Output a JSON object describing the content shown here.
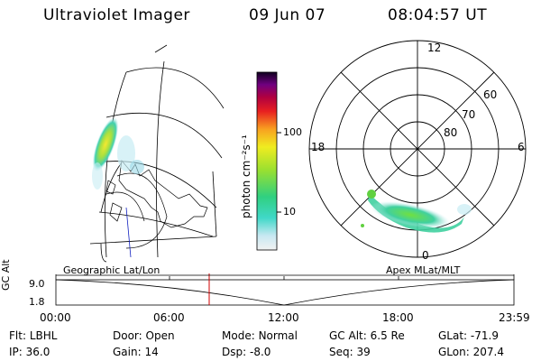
{
  "header": {
    "title": "Ultraviolet Imager",
    "date": "09 Jun 07",
    "time": "08:04:57 UT"
  },
  "colorbar": {
    "unit_label": "photon cm⁻²s⁻¹",
    "tick_labels": [
      "100",
      "10"
    ]
  },
  "polar": {
    "mlt_labels": [
      "12",
      "18",
      "6",
      "0"
    ],
    "lat_labels": [
      "60",
      "70",
      "80"
    ]
  },
  "strip": {
    "axis_label": "GC Alt",
    "left_title": "Geographic Lat/Lon",
    "right_title": "Apex MLat/MLT",
    "y_ticks": [
      "9.0",
      "1.8"
    ],
    "x_ticks": [
      "00:00",
      "06:00",
      "12:00",
      "18:00",
      "23:59"
    ],
    "marker_color": "#d00000"
  },
  "footer": {
    "row1": [
      {
        "label": "Flt:",
        "value": "LBHL"
      },
      {
        "label": "Door:",
        "value": "Open"
      },
      {
        "label": "Mode:",
        "value": "Normal"
      },
      {
        "label": "GC Alt:",
        "value": "6.5 Re"
      },
      {
        "label": "GLat:",
        "value": "-71.9"
      }
    ],
    "row2": [
      {
        "label": "IP:",
        "value": "36.0"
      },
      {
        "label": "Gain:",
        "value": "14"
      },
      {
        "label": "Dsp:",
        "value": "-8.0"
      },
      {
        "label": "Seq:",
        "value": "39"
      },
      {
        "label": "GLon:",
        "value": "207.4"
      }
    ]
  }
}
